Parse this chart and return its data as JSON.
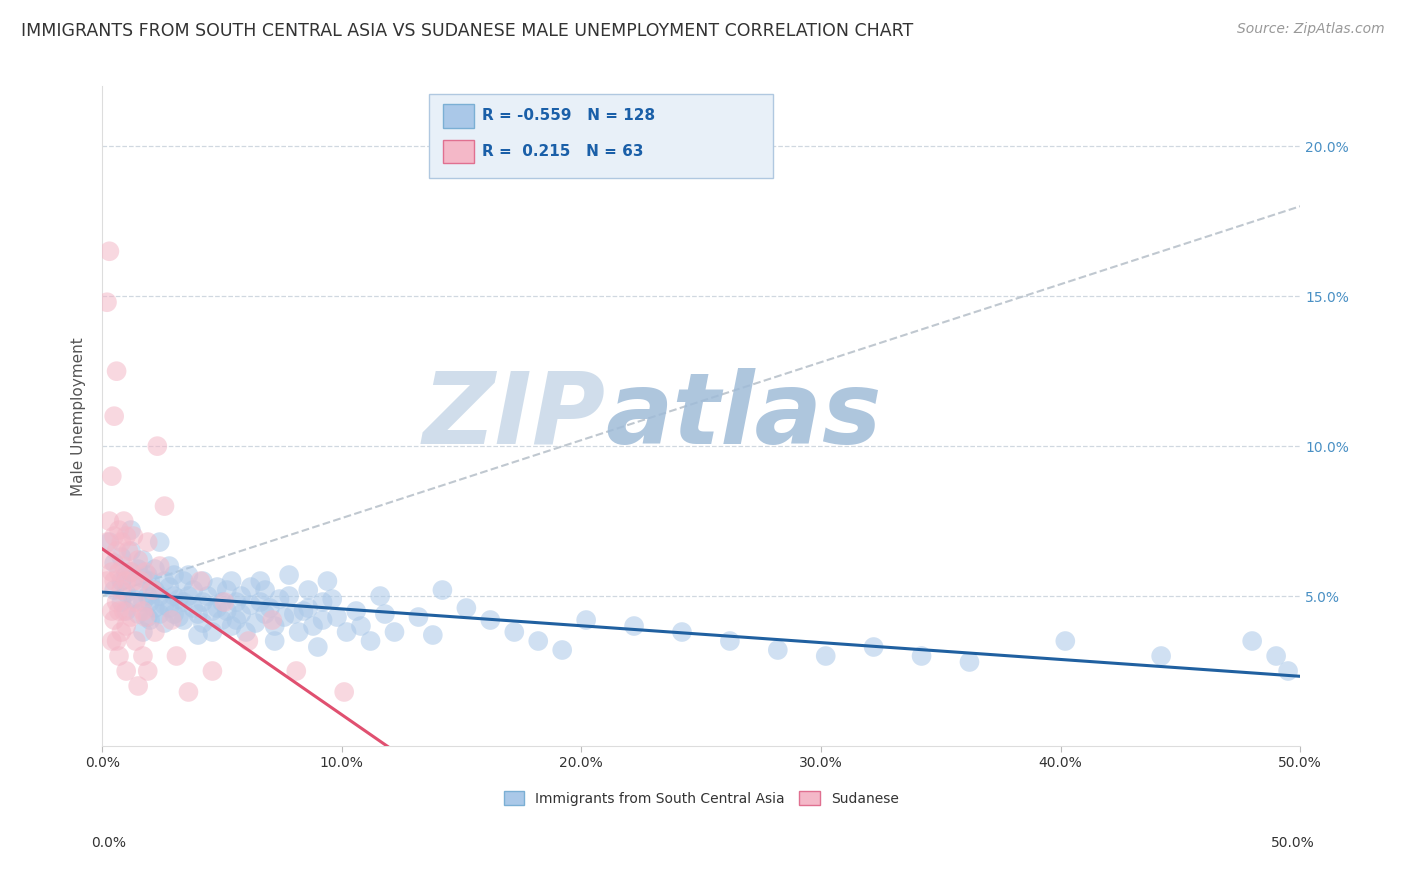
{
  "title": "IMMIGRANTS FROM SOUTH CENTRAL ASIA VS SUDANESE MALE UNEMPLOYMENT CORRELATION CHART",
  "source": "Source: ZipAtlas.com",
  "ylabel": "Male Unemployment",
  "series": [
    {
      "name": "Immigrants from South Central Asia",
      "R": -0.559,
      "N": 128,
      "color": "#aac8e8",
      "edge_color": "#7bafd4",
      "trend_color": "#2060a0",
      "trend_style": "solid",
      "points": [
        [
          0.3,
          6.8
        ],
        [
          0.5,
          5.2
        ],
        [
          0.5,
          6.1
        ],
        [
          0.8,
          5.5
        ],
        [
          0.8,
          4.8
        ],
        [
          0.8,
          6.3
        ],
        [
          1.0,
          5.7
        ],
        [
          1.0,
          5.1
        ],
        [
          1.0,
          4.5
        ],
        [
          1.2,
          5.8
        ],
        [
          1.2,
          6.5
        ],
        [
          1.2,
          7.2
        ],
        [
          1.3,
          4.9
        ],
        [
          1.5,
          5.3
        ],
        [
          1.5,
          5.9
        ],
        [
          1.5,
          4.4
        ],
        [
          1.7,
          5.6
        ],
        [
          1.7,
          4.8
        ],
        [
          1.7,
          6.2
        ],
        [
          1.7,
          3.8
        ],
        [
          1.9,
          5.0
        ],
        [
          1.9,
          4.3
        ],
        [
          1.9,
          5.7
        ],
        [
          2.0,
          5.5
        ],
        [
          2.0,
          4.8
        ],
        [
          2.0,
          4.2
        ],
        [
          2.2,
          5.2
        ],
        [
          2.2,
          4.6
        ],
        [
          2.2,
          5.9
        ],
        [
          2.4,
          6.8
        ],
        [
          2.4,
          5.0
        ],
        [
          2.4,
          4.4
        ],
        [
          2.6,
          4.7
        ],
        [
          2.6,
          5.5
        ],
        [
          2.6,
          4.1
        ],
        [
          2.8,
          5.3
        ],
        [
          2.8,
          6.0
        ],
        [
          2.8,
          4.6
        ],
        [
          3.0,
          5.0
        ],
        [
          3.0,
          4.4
        ],
        [
          3.0,
          5.7
        ],
        [
          3.2,
          4.3
        ],
        [
          3.2,
          4.9
        ],
        [
          3.4,
          5.5
        ],
        [
          3.4,
          4.8
        ],
        [
          3.4,
          4.2
        ],
        [
          3.6,
          5.0
        ],
        [
          3.6,
          5.7
        ],
        [
          3.8,
          4.6
        ],
        [
          3.8,
          5.2
        ],
        [
          4.0,
          4.4
        ],
        [
          4.0,
          3.7
        ],
        [
          4.2,
          4.8
        ],
        [
          4.2,
          5.5
        ],
        [
          4.2,
          4.1
        ],
        [
          4.4,
          5.0
        ],
        [
          4.6,
          4.5
        ],
        [
          4.6,
          3.8
        ],
        [
          4.8,
          5.3
        ],
        [
          4.8,
          4.6
        ],
        [
          5.0,
          4.2
        ],
        [
          5.0,
          4.8
        ],
        [
          5.2,
          5.2
        ],
        [
          5.2,
          4.5
        ],
        [
          5.4,
          4.0
        ],
        [
          5.4,
          5.5
        ],
        [
          5.6,
          4.8
        ],
        [
          5.6,
          4.2
        ],
        [
          5.8,
          5.0
        ],
        [
          5.8,
          4.4
        ],
        [
          6.0,
          3.8
        ],
        [
          6.2,
          4.7
        ],
        [
          6.2,
          5.3
        ],
        [
          6.4,
          4.1
        ],
        [
          6.6,
          5.5
        ],
        [
          6.6,
          4.8
        ],
        [
          6.8,
          4.4
        ],
        [
          6.8,
          5.2
        ],
        [
          7.0,
          4.6
        ],
        [
          7.2,
          4.0
        ],
        [
          7.2,
          3.5
        ],
        [
          7.4,
          4.9
        ],
        [
          7.6,
          4.3
        ],
        [
          7.8,
          5.7
        ],
        [
          7.8,
          5.0
        ],
        [
          8.0,
          4.4
        ],
        [
          8.2,
          3.8
        ],
        [
          8.4,
          4.5
        ],
        [
          8.6,
          5.2
        ],
        [
          8.6,
          4.6
        ],
        [
          8.8,
          4.0
        ],
        [
          9.0,
          3.3
        ],
        [
          9.2,
          4.8
        ],
        [
          9.2,
          4.2
        ],
        [
          9.4,
          5.5
        ],
        [
          9.6,
          4.9
        ],
        [
          9.8,
          4.3
        ],
        [
          10.2,
          3.8
        ],
        [
          10.6,
          4.5
        ],
        [
          10.8,
          4.0
        ],
        [
          11.2,
          3.5
        ],
        [
          11.6,
          5.0
        ],
        [
          11.8,
          4.4
        ],
        [
          12.2,
          3.8
        ],
        [
          13.2,
          4.3
        ],
        [
          13.8,
          3.7
        ],
        [
          14.2,
          5.2
        ],
        [
          15.2,
          4.6
        ],
        [
          16.2,
          4.2
        ],
        [
          17.2,
          3.8
        ],
        [
          18.2,
          3.5
        ],
        [
          19.2,
          3.2
        ],
        [
          20.2,
          4.2
        ],
        [
          22.2,
          4.0
        ],
        [
          24.2,
          3.8
        ],
        [
          26.2,
          3.5
        ],
        [
          28.2,
          3.2
        ],
        [
          30.2,
          3.0
        ],
        [
          32.2,
          3.3
        ],
        [
          34.2,
          3.0
        ],
        [
          36.2,
          2.8
        ],
        [
          40.2,
          3.5
        ],
        [
          44.2,
          3.0
        ],
        [
          48.0,
          3.5
        ],
        [
          49.0,
          3.0
        ],
        [
          49.5,
          2.5
        ]
      ]
    },
    {
      "name": "Sudanese",
      "R": 0.215,
      "N": 63,
      "color": "#f4b8c8",
      "edge_color": "#e07090",
      "trend_color": "#e05070",
      "trend_style": "solid",
      "points": [
        [
          0.2,
          6.8
        ],
        [
          0.2,
          5.5
        ],
        [
          0.2,
          14.8
        ],
        [
          0.3,
          6.2
        ],
        [
          0.3,
          7.5
        ],
        [
          0.3,
          16.5
        ],
        [
          0.4,
          5.8
        ],
        [
          0.4,
          9.0
        ],
        [
          0.4,
          4.5
        ],
        [
          0.4,
          3.5
        ],
        [
          0.5,
          7.0
        ],
        [
          0.5,
          5.5
        ],
        [
          0.5,
          4.2
        ],
        [
          0.5,
          11.0
        ],
        [
          0.6,
          6.5
        ],
        [
          0.6,
          4.8
        ],
        [
          0.6,
          12.5
        ],
        [
          0.6,
          3.5
        ],
        [
          0.7,
          7.2
        ],
        [
          0.7,
          5.8
        ],
        [
          0.7,
          4.5
        ],
        [
          0.7,
          3.0
        ],
        [
          0.8,
          6.8
        ],
        [
          0.8,
          5.2
        ],
        [
          0.8,
          3.8
        ],
        [
          0.9,
          7.5
        ],
        [
          0.9,
          6.0
        ],
        [
          0.9,
          4.5
        ],
        [
          1.0,
          7.0
        ],
        [
          1.0,
          5.5
        ],
        [
          1.0,
          4.0
        ],
        [
          1.0,
          2.5
        ],
        [
          1.1,
          6.5
        ],
        [
          1.2,
          5.8
        ],
        [
          1.2,
          4.3
        ],
        [
          1.3,
          7.0
        ],
        [
          1.3,
          5.5
        ],
        [
          1.4,
          4.8
        ],
        [
          1.4,
          3.5
        ],
        [
          1.5,
          6.2
        ],
        [
          1.5,
          2.0
        ],
        [
          1.6,
          5.5
        ],
        [
          1.7,
          4.5
        ],
        [
          1.7,
          3.0
        ],
        [
          1.8,
          5.8
        ],
        [
          1.8,
          4.3
        ],
        [
          1.9,
          6.8
        ],
        [
          1.9,
          2.5
        ],
        [
          2.1,
          5.2
        ],
        [
          2.2,
          3.8
        ],
        [
          2.3,
          10.0
        ],
        [
          2.4,
          6.0
        ],
        [
          2.6,
          8.0
        ],
        [
          2.9,
          4.2
        ],
        [
          3.1,
          3.0
        ],
        [
          3.6,
          1.8
        ],
        [
          4.1,
          5.5
        ],
        [
          4.6,
          2.5
        ],
        [
          5.1,
          4.8
        ],
        [
          6.1,
          3.5
        ],
        [
          7.1,
          4.2
        ],
        [
          8.1,
          2.5
        ],
        [
          10.1,
          1.8
        ]
      ]
    }
  ],
  "dashed_line": {
    "x": [
      0.0,
      50.0
    ],
    "y_start": 5.0,
    "y_end": 18.0,
    "color": "#c0c8d0",
    "style": "--",
    "linewidth": 1.5
  },
  "xlim": [
    0.0,
    50.0
  ],
  "ylim": [
    0.0,
    22.0
  ],
  "yticks": [
    5.0,
    10.0,
    15.0,
    20.0
  ],
  "ytick_labels": [
    "5.0%",
    "10.0%",
    "15.0%",
    "20.0%"
  ],
  "xticks": [
    0.0,
    10.0,
    20.0,
    30.0,
    40.0,
    50.0
  ],
  "xtick_labels": [
    "0.0%",
    "10.0%",
    "20.0%",
    "30.0%",
    "40.0%",
    "50.0%"
  ],
  "watermark_zip": "ZIP",
  "watermark_atlas": "atlas",
  "watermark_color_zip": "#c8d8e8",
  "watermark_color_atlas": "#a8c4e0",
  "grid_color": "#d0d8e0",
  "background_color": "#ffffff",
  "title_color": "#333333",
  "axis_label_color": "#555555",
  "tick_label_color_right": "#4a90c4",
  "legend_top_box_color": "#e8f0f8",
  "legend_top_border_color": "#b0c8e0"
}
